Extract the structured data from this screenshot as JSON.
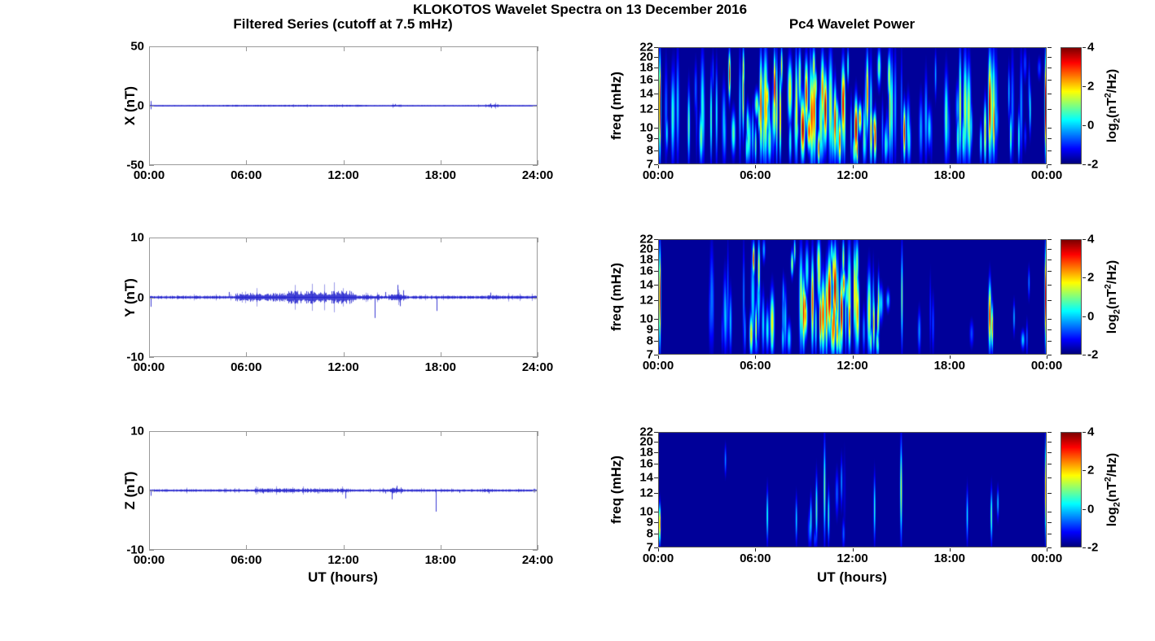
{
  "figure": {
    "title": "KLOKOTOS Wavelet Spectra on 13 December 2016"
  },
  "colors": {
    "background": "#ffffff",
    "series_line": "#2222cc",
    "axis_box_line_panels": "#9a9a9a",
    "axis_box_heat_panels": "#555555",
    "tick_dark": "#222222",
    "text": "#000000",
    "colormap": "jet",
    "colormap_low": "#000080",
    "colormap_high": "#7f0000"
  },
  "left_column": {
    "title": "Filtered Series (cutoff at 7.5 mHz)",
    "xlabel": "UT (hours)",
    "x_tick_labels": [
      "00:00",
      "06:00",
      "12:00",
      "18:00",
      "24:00"
    ],
    "x_tick_values": [
      0,
      6,
      12,
      18,
      24
    ]
  },
  "right_column": {
    "title": "Pc4 Wavelet Power",
    "xlabel": "UT (hours)",
    "ylabel": "freq (mHz)",
    "x_tick_labels": [
      "00:00",
      "06:00",
      "12:00",
      "18:00",
      "00:00"
    ],
    "x_tick_values": [
      0,
      6,
      12,
      18,
      24
    ],
    "colorbar": {
      "tick_labels": [
        "-2",
        "0",
        "2",
        "4"
      ],
      "tick_values": [
        -2,
        0,
        2,
        4
      ],
      "range": [
        -2,
        4
      ],
      "label_parts": {
        "pre": "log",
        "sub": "2",
        "mid": "(nT",
        "sup": "2",
        "post": "/Hz)"
      }
    }
  },
  "chart_data": [
    {
      "type": "line",
      "name": "X filtered series",
      "ylabel": "X (nT)",
      "ylim": [
        -50,
        50
      ],
      "y_tick_labels": [
        "-50",
        "0",
        "50"
      ],
      "y_tick_values": [
        -50,
        0,
        50
      ],
      "x_hours": [
        0,
        24
      ],
      "noise_envelope": [
        {
          "t0": 0,
          "t1": 24,
          "amp": 0.4
        },
        {
          "t0": 4.5,
          "t1": 13.5,
          "amp": 0.6
        },
        {
          "t0": 15.0,
          "t1": 15.6,
          "amp": 0.7
        },
        {
          "t0": 20.8,
          "t1": 21.6,
          "amp": 0.9
        }
      ],
      "spikes": [
        {
          "t": 0.07,
          "v": 4
        },
        {
          "t": 0.07,
          "v": -3
        },
        {
          "t": 15.2,
          "v": 1.5
        },
        {
          "t": 21.1,
          "v": 2.0
        },
        {
          "t": 21.15,
          "v": -2.0
        }
      ]
    },
    {
      "type": "line",
      "name": "Y filtered series",
      "ylabel": "Y (nT)",
      "ylim": [
        -10,
        10
      ],
      "y_tick_labels": [
        "-10",
        "0",
        "10"
      ],
      "y_tick_values": [
        -10,
        0,
        10
      ],
      "x_hours": [
        0,
        24
      ],
      "noise_envelope": [
        {
          "t0": 0,
          "t1": 24,
          "amp": 0.22
        },
        {
          "t0": 5.3,
          "t1": 8.5,
          "amp": 0.6
        },
        {
          "t0": 8.5,
          "t1": 12.6,
          "amp": 0.85
        },
        {
          "t0": 12.6,
          "t1": 14.2,
          "amp": 0.35
        },
        {
          "t0": 14.8,
          "t1": 15.9,
          "amp": 0.45
        },
        {
          "t0": 20.9,
          "t1": 21.5,
          "amp": 0.3
        }
      ],
      "spikes": [
        {
          "t": 0.07,
          "v": -1.6
        },
        {
          "t": 4.9,
          "v": 0.9
        },
        {
          "t": 13.95,
          "v": -3.5
        },
        {
          "t": 14.6,
          "v": 0.9
        },
        {
          "t": 15.35,
          "v": 2.1
        },
        {
          "t": 15.5,
          "v": -1.5
        },
        {
          "t": 15.7,
          "v": 1.2
        },
        {
          "t": 17.8,
          "v": -2.3
        },
        {
          "t": 21.1,
          "v": 0.8
        }
      ]
    },
    {
      "type": "line",
      "name": "Z filtered series",
      "ylabel": "Z (nT)",
      "ylim": [
        -10,
        10
      ],
      "y_tick_labels": [
        "-10",
        "0",
        "10"
      ],
      "y_tick_values": [
        -10,
        0,
        10
      ],
      "x_hours": [
        0,
        24
      ],
      "noise_envelope": [
        {
          "t0": 0,
          "t1": 24,
          "amp": 0.16
        },
        {
          "t0": 6.5,
          "t1": 12.3,
          "amp": 0.28
        },
        {
          "t0": 14.9,
          "t1": 15.7,
          "amp": 0.4
        },
        {
          "t0": 20.6,
          "t1": 21.3,
          "amp": 0.22
        }
      ],
      "spikes": [
        {
          "t": 0.07,
          "v": -0.9
        },
        {
          "t": 7.0,
          "v": -0.5
        },
        {
          "t": 10.4,
          "v": -0.5
        },
        {
          "t": 12.15,
          "v": -1.35
        },
        {
          "t": 14.6,
          "v": -0.5
        },
        {
          "t": 15.0,
          "v": -1.5
        },
        {
          "t": 15.3,
          "v": 0.8
        },
        {
          "t": 17.75,
          "v": -3.6
        },
        {
          "t": 19.2,
          "v": -0.4
        },
        {
          "t": 21.0,
          "v": -0.5
        }
      ]
    },
    {
      "type": "heatmap",
      "name": "X Pc4 wavelet power",
      "flim": [
        7,
        22
      ],
      "freq_tick_labels": [
        "7",
        "8",
        "9",
        "10",
        "12",
        "14",
        "16",
        "18",
        "20",
        "22"
      ],
      "freq_tick_values": [
        7,
        8,
        9,
        10,
        12,
        14,
        16,
        18,
        20,
        22
      ],
      "clim": [
        -2,
        4
      ],
      "streaks": [
        {
          "t": 0.04,
          "w": 0.05,
          "f0": 7,
          "f1": 22,
          "p": 4
        },
        {
          "t": 23.96,
          "w": 0.05,
          "f0": 7,
          "f1": 22,
          "p": 4
        },
        {
          "t": 4.35,
          "w": 0.06,
          "f0": 13,
          "f1": 22,
          "p": 3.6
        },
        {
          "t": 5.2,
          "w": 0.05,
          "f0": 9,
          "f1": 22,
          "p": 2.5
        },
        {
          "t": 6.3,
          "w": 0.08,
          "f0": 7,
          "f1": 22,
          "p": 3.2
        },
        {
          "t": 7.15,
          "w": 0.06,
          "f0": 10,
          "f1": 22,
          "p": 3.8
        },
        {
          "t": 7.5,
          "w": 0.05,
          "f0": 7,
          "f1": 18,
          "p": 2.8
        },
        {
          "t": 8.9,
          "w": 0.12,
          "f0": 7,
          "f1": 14,
          "p": 4
        },
        {
          "t": 9.6,
          "w": 0.1,
          "f0": 7,
          "f1": 20,
          "p": 3.2
        },
        {
          "t": 10.3,
          "w": 0.1,
          "f0": 8,
          "f1": 18,
          "p": 3.9
        },
        {
          "t": 10.9,
          "w": 0.08,
          "f0": 7,
          "f1": 16,
          "p": 3.4
        },
        {
          "t": 11.4,
          "w": 0.1,
          "f0": 8,
          "f1": 20,
          "p": 3.6
        },
        {
          "t": 12.2,
          "w": 0.1,
          "f0": 7,
          "f1": 14,
          "p": 4
        },
        {
          "t": 12.9,
          "w": 0.07,
          "f0": 9,
          "f1": 22,
          "p": 3
        },
        {
          "t": 13.4,
          "w": 0.05,
          "f0": 7,
          "f1": 12,
          "p": 3.5
        },
        {
          "t": 14.3,
          "w": 0.05,
          "f0": 7,
          "f1": 20,
          "p": 2.2
        },
        {
          "t": 15.2,
          "w": 0.07,
          "f0": 7,
          "f1": 13,
          "p": 3.6
        },
        {
          "t": 20.5,
          "w": 0.09,
          "f0": 7,
          "f1": 22,
          "p": 4
        },
        {
          "t": 20.75,
          "w": 0.06,
          "f0": 7,
          "f1": 16,
          "p": 3.2
        },
        {
          "t": 21.8,
          "w": 0.06,
          "f0": 7,
          "f1": 12,
          "p": 1.2
        },
        {
          "t": 23.0,
          "w": 0.04,
          "f0": 9,
          "f1": 16,
          "p": 0.5
        }
      ],
      "clusters": [
        {
          "t0": 0.3,
          "t1": 4.2,
          "n": 16,
          "pMin": -1,
          "pMax": 1.2,
          "fMin": 9,
          "fMax": 22
        },
        {
          "t0": 4.4,
          "t1": 8.2,
          "n": 26,
          "pMin": -0.5,
          "pMax": 2.6,
          "fMin": 7,
          "fMax": 22
        },
        {
          "t0": 8.2,
          "t1": 13.6,
          "n": 44,
          "pMin": 0,
          "pMax": 3.2,
          "fMin": 7,
          "fMax": 22
        },
        {
          "t0": 13.6,
          "t1": 15.6,
          "n": 12,
          "pMin": -0.5,
          "pMax": 2.0,
          "fMin": 7,
          "fMax": 20
        },
        {
          "t0": 15.6,
          "t1": 18.6,
          "n": 10,
          "pMin": -1,
          "pMax": 1.0,
          "fMin": 8,
          "fMax": 22
        },
        {
          "t0": 18.6,
          "t1": 21.5,
          "n": 14,
          "pMin": -0.5,
          "pMax": 2.4,
          "fMin": 7,
          "fMax": 22
        },
        {
          "t0": 21.5,
          "t1": 23.6,
          "n": 8,
          "pMin": -1,
          "pMax": 0.8,
          "fMin": 8,
          "fMax": 20
        }
      ]
    },
    {
      "type": "heatmap",
      "name": "Y Pc4 wavelet power",
      "flim": [
        7,
        22
      ],
      "freq_tick_labels": [
        "7",
        "8",
        "9",
        "10",
        "12",
        "14",
        "16",
        "18",
        "20",
        "22"
      ],
      "freq_tick_values": [
        7,
        8,
        9,
        10,
        12,
        14,
        16,
        18,
        20,
        22
      ],
      "clim": [
        -2,
        4
      ],
      "streaks": [
        {
          "t": 0.04,
          "w": 0.04,
          "f0": 7,
          "f1": 22,
          "p": 3.5
        },
        {
          "t": 23.96,
          "w": 0.04,
          "f0": 7,
          "f1": 22,
          "p": 3.5
        },
        {
          "t": 5.85,
          "w": 0.06,
          "f0": 15,
          "f1": 22,
          "p": 3.4
        },
        {
          "t": 6.0,
          "w": 0.05,
          "f0": 7,
          "f1": 12,
          "p": 2.0
        },
        {
          "t": 8.95,
          "w": 0.08,
          "f0": 7,
          "f1": 16,
          "p": 3.4
        },
        {
          "t": 9.5,
          "w": 0.08,
          "f0": 7,
          "f1": 20,
          "p": 3.0
        },
        {
          "t": 10.0,
          "w": 0.07,
          "f0": 7,
          "f1": 14,
          "p": 3.6
        },
        {
          "t": 10.55,
          "w": 0.12,
          "f0": 8,
          "f1": 20,
          "p": 4
        },
        {
          "t": 10.9,
          "w": 0.1,
          "f0": 9,
          "f1": 21,
          "p": 4
        },
        {
          "t": 11.3,
          "w": 0.09,
          "f0": 7,
          "f1": 16,
          "p": 3.8
        },
        {
          "t": 11.8,
          "w": 0.07,
          "f0": 7,
          "f1": 14,
          "p": 3.2
        },
        {
          "t": 12.1,
          "w": 0.05,
          "f0": 8,
          "f1": 22,
          "p": 2.6
        },
        {
          "t": 13.3,
          "w": 0.06,
          "f0": 7,
          "f1": 13,
          "p": 2.4
        },
        {
          "t": 13.6,
          "w": 0.05,
          "f0": 8,
          "f1": 16,
          "p": 2.0
        },
        {
          "t": 15.05,
          "w": 0.05,
          "f0": 7,
          "f1": 22,
          "p": 1.2
        },
        {
          "t": 20.5,
          "w": 0.08,
          "f0": 7,
          "f1": 15,
          "p": 3.4
        },
        {
          "t": 20.65,
          "w": 0.05,
          "f0": 7,
          "f1": 12,
          "p": 2.6
        }
      ],
      "clusters": [
        {
          "t0": 3.0,
          "t1": 5.4,
          "n": 10,
          "pMin": -1,
          "pMax": 0.8,
          "fMin": 8,
          "fMax": 22
        },
        {
          "t0": 5.4,
          "t1": 8.6,
          "n": 18,
          "pMin": -0.5,
          "pMax": 2.2,
          "fMin": 7,
          "fMax": 22
        },
        {
          "t0": 8.6,
          "t1": 12.6,
          "n": 30,
          "pMin": 0.5,
          "pMax": 3.4,
          "fMin": 7,
          "fMax": 22
        },
        {
          "t0": 12.6,
          "t1": 14.2,
          "n": 10,
          "pMin": -0.5,
          "pMax": 2.0,
          "fMin": 7,
          "fMax": 18
        },
        {
          "t0": 16.0,
          "t1": 19.5,
          "n": 4,
          "pMin": -1.2,
          "pMax": -0.2,
          "fMin": 8,
          "fMax": 18
        },
        {
          "t0": 21.3,
          "t1": 23.2,
          "n": 4,
          "pMin": -1,
          "pMax": 0.3,
          "fMin": 8,
          "fMax": 16
        }
      ]
    },
    {
      "type": "heatmap",
      "name": "Z Pc4 wavelet power",
      "flim": [
        7,
        22
      ],
      "freq_tick_labels": [
        "7",
        "8",
        "9",
        "10",
        "12",
        "14",
        "16",
        "18",
        "20",
        "22"
      ],
      "freq_tick_values": [
        7,
        8,
        9,
        10,
        12,
        14,
        16,
        18,
        20,
        22
      ],
      "clim": [
        -2,
        4
      ],
      "streaks": [
        {
          "t": 0.03,
          "w": 0.04,
          "f0": 7,
          "f1": 11,
          "p": 2.8
        },
        {
          "t": 23.97,
          "w": 0.04,
          "f0": 7,
          "f1": 22,
          "p": 2.5
        },
        {
          "t": 4.1,
          "w": 0.04,
          "f0": 14,
          "f1": 20,
          "p": -0.3
        },
        {
          "t": 6.7,
          "w": 0.05,
          "f0": 7,
          "f1": 13,
          "p": 0.6
        },
        {
          "t": 8.5,
          "w": 0.05,
          "f0": 7,
          "f1": 12,
          "p": 0.2
        },
        {
          "t": 9.4,
          "w": 0.05,
          "f0": 7,
          "f1": 12,
          "p": 0.5
        },
        {
          "t": 9.75,
          "w": 0.06,
          "f0": 7,
          "f1": 15,
          "p": 0.9
        },
        {
          "t": 10.25,
          "w": 0.06,
          "f0": 7,
          "f1": 22,
          "p": 1.1
        },
        {
          "t": 10.5,
          "w": 0.05,
          "f0": 7,
          "f1": 13,
          "p": 0.7
        },
        {
          "t": 11.3,
          "w": 0.04,
          "f0": 10,
          "f1": 18,
          "p": -0.2
        },
        {
          "t": 13.35,
          "w": 0.05,
          "f0": 7,
          "f1": 15,
          "p": 0.6
        },
        {
          "t": 15.0,
          "w": 0.06,
          "f0": 7,
          "f1": 22,
          "p": 1.6
        },
        {
          "t": 19.1,
          "w": 0.04,
          "f0": 7,
          "f1": 13,
          "p": 0.3
        },
        {
          "t": 20.6,
          "w": 0.05,
          "f0": 7,
          "f1": 13,
          "p": 1.0
        },
        {
          "t": 21.0,
          "w": 0.04,
          "f0": 9,
          "f1": 13,
          "p": 0.1
        }
      ],
      "clusters": [
        {
          "t0": 9.0,
          "t1": 11.5,
          "n": 5,
          "pMin": -1.5,
          "pMax": -0.5,
          "fMin": 7,
          "fMax": 18
        }
      ]
    }
  ]
}
